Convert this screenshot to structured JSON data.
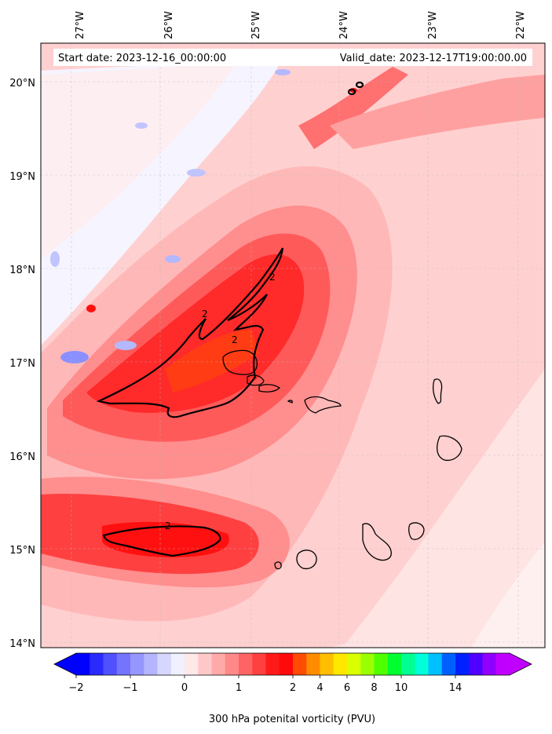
{
  "map": {
    "start_date_text": "Start date: 2023-12-16_00:00:00",
    "valid_date_text": "Valid_date: 2023-12-17T19:00:00.00",
    "lon_labels": [
      "27°W",
      "26°W",
      "25°W",
      "24°W",
      "23°W",
      "22°W"
    ],
    "lat_labels": [
      "20°N",
      "19°N",
      "18°N",
      "17°N",
      "16°N",
      "15°N",
      "14°N"
    ],
    "contour_value_label": "2",
    "field_colors": {
      "background": "#ffd0d0",
      "light_pink": "#ffe4e4",
      "pink": "#ffb8b8",
      "medium_red": "#ff8e8e",
      "red": "#ff5a5a",
      "strong_red": "#ff2a2a",
      "core_red": "#ff1010",
      "orange_core": "#ff4a00",
      "white_band": "#f4f4ff",
      "blue_patch": "#b4b8ff",
      "dark_blue": "#6e76ff"
    }
  },
  "colorbar": {
    "title": "300 hPa potenital vorticity (PVU)",
    "tick_labels": [
      "−2",
      "−1",
      "0",
      "1",
      "2",
      "4",
      "6",
      "8",
      "10",
      "14"
    ],
    "colors": [
      "#0000ff",
      "#2a2aff",
      "#5050ff",
      "#7474ff",
      "#9696ff",
      "#b4b4ff",
      "#d6d6ff",
      "#f0f0ff",
      "#ffe8e8",
      "#ffc8c8",
      "#ffaaaa",
      "#ff8888",
      "#ff6464",
      "#ff4040",
      "#ff1a1a",
      "#ff0a0a",
      "#ff4c00",
      "#ff8c00",
      "#ffbe00",
      "#ffe800",
      "#d9ff00",
      "#9aff00",
      "#50ff00",
      "#00ff30",
      "#00ff90",
      "#00ffd8",
      "#00c0ff",
      "#0060ff",
      "#0020ff",
      "#5000ff",
      "#9000ff",
      "#c000ff"
    ]
  }
}
